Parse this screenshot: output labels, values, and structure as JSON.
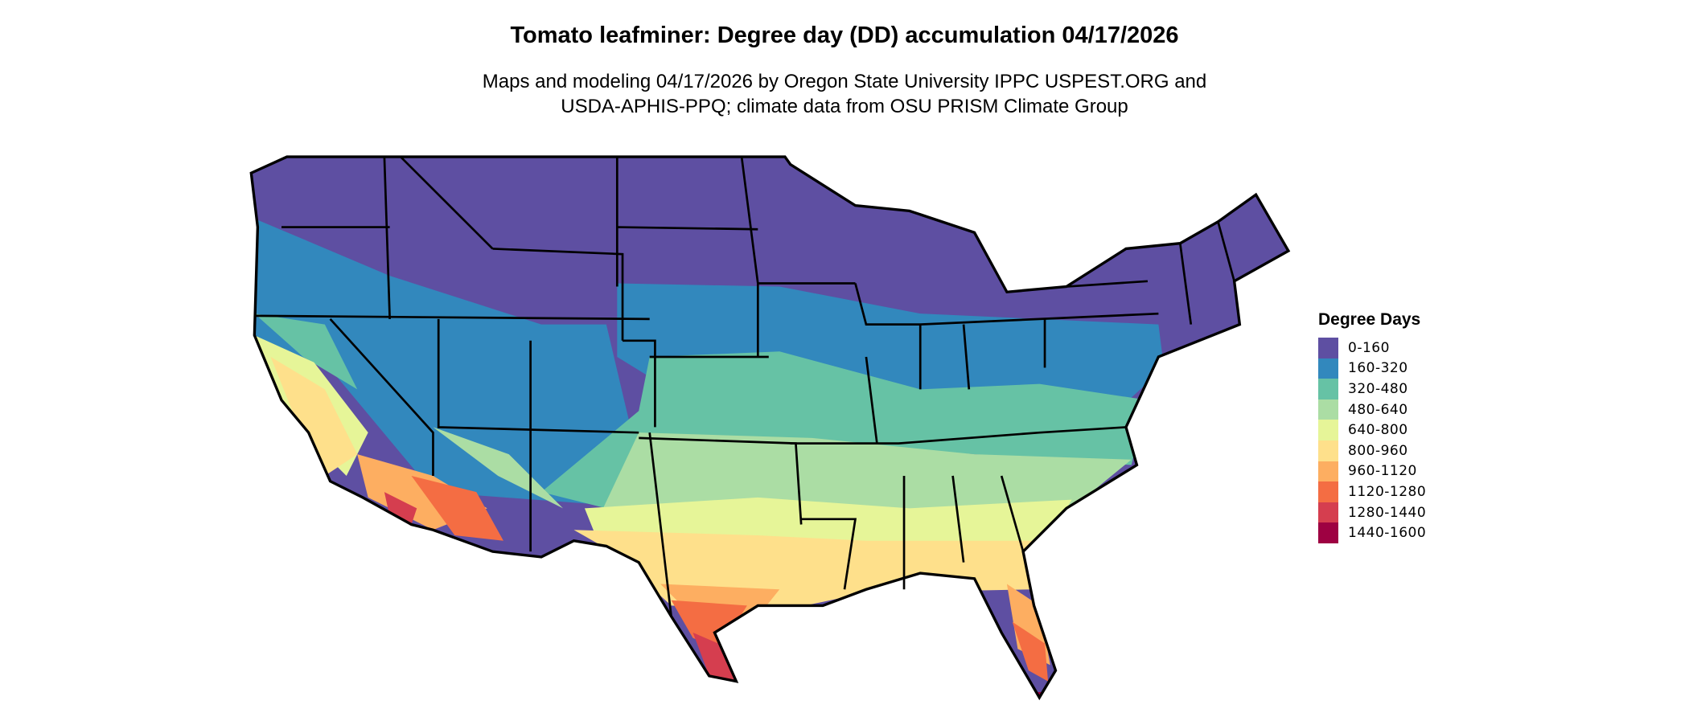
{
  "title": "Tomato leafminer: Degree day (DD) accumulation 04/17/2026",
  "subtitle_line1": "Maps and modeling 04/17/2026 by Oregon State University IPPC USPEST.ORG and",
  "subtitle_line2": "USDA-APHIS-PPQ; climate data from OSU PRISM Climate Group",
  "legend": {
    "title": "Degree Days",
    "items": [
      {
        "label": "0-160",
        "color": "#5E4FA2"
      },
      {
        "label": "160-320",
        "color": "#3288BD"
      },
      {
        "label": "320-480",
        "color": "#66C2A5"
      },
      {
        "label": "480-640",
        "color": "#ABDDA4"
      },
      {
        "label": "640-800",
        "color": "#E6F598"
      },
      {
        "label": "800-960",
        "color": "#FEE08B"
      },
      {
        "label": "960-1120",
        "color": "#FDAE61"
      },
      {
        "label": "1120-1280",
        "color": "#F46D43"
      },
      {
        "label": "1280-1440",
        "color": "#D53E4F"
      },
      {
        "label": "1440-1600",
        "color": "#9E0142"
      }
    ]
  }
}
